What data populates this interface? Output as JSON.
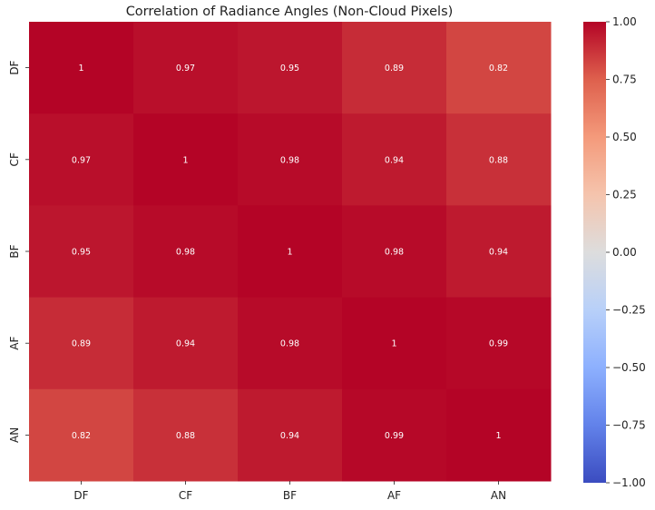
{
  "chart_data": {
    "type": "heatmap",
    "title": "Correlation of Radiance Angles (Non-Cloud Pixels)",
    "x_labels": [
      "DF",
      "CF",
      "BF",
      "AF",
      "AN"
    ],
    "y_labels": [
      "DF",
      "CF",
      "BF",
      "AF",
      "AN"
    ],
    "values": [
      [
        1,
        0.97,
        0.95,
        0.89,
        0.82
      ],
      [
        0.97,
        1,
        0.98,
        0.94,
        0.88
      ],
      [
        0.95,
        0.98,
        1,
        0.98,
        0.94
      ],
      [
        0.89,
        0.94,
        0.98,
        1,
        0.99
      ],
      [
        0.82,
        0.88,
        0.94,
        0.99,
        1
      ]
    ],
    "annotations": true,
    "colormap": "coolwarm",
    "vmin": -1.0,
    "vmax": 1.0,
    "colorbar_ticks": [
      "1.00",
      "0.75",
      "0.50",
      "0.25",
      "0.00",
      "−0.25",
      "−0.50",
      "−0.75",
      "−1.00"
    ],
    "colorbar_tick_values": [
      1.0,
      0.75,
      0.5,
      0.25,
      0.0,
      -0.25,
      -0.5,
      -0.75,
      -1.0
    ]
  }
}
